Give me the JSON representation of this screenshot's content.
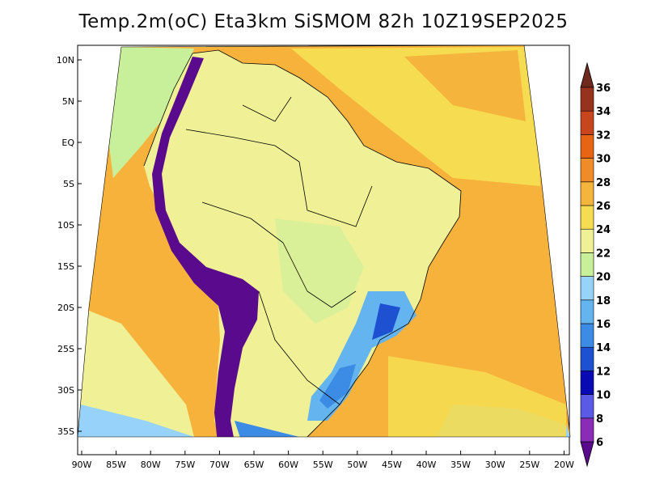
{
  "title": "Temp.2m(oC) Eta3km SiSMOM 82h 10Z19SEP2025",
  "lat_labels": [
    "10N",
    "5N",
    "EQ",
    "5S",
    "10S",
    "15S",
    "20S",
    "25S",
    "30S",
    "35S"
  ],
  "lon_labels": [
    "90W",
    "85W",
    "80W",
    "75W",
    "70W",
    "65W",
    "60W",
    "55W",
    "50W",
    "45W",
    "40W",
    "35W",
    "30W",
    "25W",
    "20W"
  ],
  "colorbar": {
    "labels": [
      "6",
      "8",
      "10",
      "12",
      "14",
      "16",
      "18",
      "20",
      "22",
      "24",
      "26",
      "28",
      "30",
      "32",
      "34",
      "36"
    ],
    "colors": [
      "#5a0a8c",
      "#8a2cb8",
      "#5a5ae6",
      "#0a0ab4",
      "#1e50d2",
      "#3c8ce6",
      "#64b4f0",
      "#96d2fa",
      "#c8f09a",
      "#f0f096",
      "#f5dc50",
      "#f5b43c",
      "#f08c28",
      "#e66414",
      "#c8461e",
      "#96321e",
      "#6e2a1e"
    ]
  },
  "colors": {
    "ocean": "#f7b23c",
    "land": "#f0f096",
    "highland": "#c8f09a",
    "andes": "#5a0a8c",
    "cool": "#64b4f0"
  }
}
